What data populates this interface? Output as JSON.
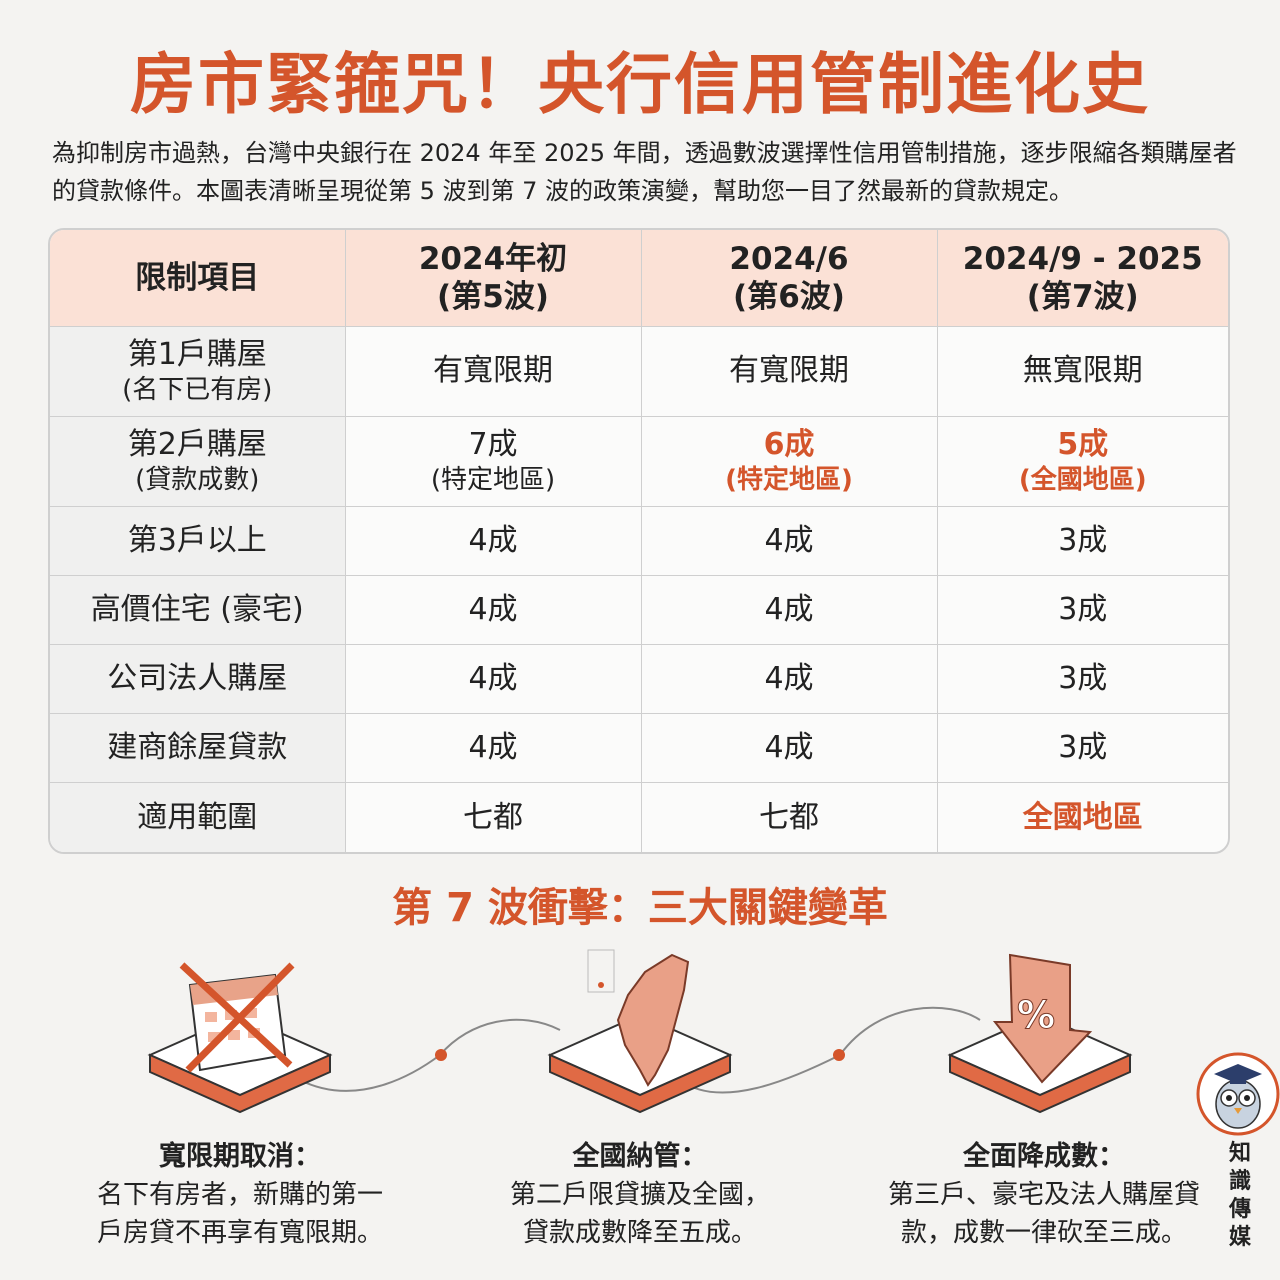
{
  "title": "房市緊箍咒！央行信用管制進化史",
  "intro": "為抑制房市過熱，台灣中央銀行在 2024 年至 2025 年間，透過數波選擇性信用管制措施，逐步限縮各類購屋者的貸款條件。本圖表清晰呈現從第 5 波到第 7 波的政策演變，幫助您一目了然最新的貸款規定。",
  "table": {
    "header": {
      "item": "限制項目",
      "c1_line1": "2024年初",
      "c1_line2": "(第5波)",
      "c2_line1": "2024/6",
      "c2_line2": "(第6波)",
      "c3_line1": "2024/9 - 2025",
      "c3_line2": "(第7波)"
    },
    "row1": {
      "label": "第1戶購屋",
      "sub": "(名下已有房)",
      "c1": "有寬限期",
      "c2": "有寬限期",
      "c3": "無寬限期"
    },
    "row2": {
      "label": "第2戶購屋",
      "sub": "(貸款成數)",
      "c1": "7成",
      "c1_sub": "(特定地區)",
      "c2": "6成",
      "c2_sub": "(特定地區)",
      "c3": "5成",
      "c3_sub": "(全國地區)"
    },
    "row3": {
      "label": "第3戶以上",
      "c1": "4成",
      "c2": "4成",
      "c3": "3成"
    },
    "row4": {
      "label": "高價住宅 (豪宅)",
      "c1": "4成",
      "c2": "4成",
      "c3": "3成"
    },
    "row5": {
      "label": "公司法人購屋",
      "c1": "4成",
      "c2": "4成",
      "c3": "3成"
    },
    "row6": {
      "label": "建商餘屋貸款",
      "c1": "4成",
      "c2": "4成",
      "c3": "3成"
    },
    "row7": {
      "label": "適用範圍",
      "c1": "七都",
      "c2": "七都",
      "c3": "全國地區"
    }
  },
  "section_title": "第 7 波衝擊：三大關鍵變革",
  "changes": [
    {
      "heading": "寬限期取消：",
      "line1": "名下有房者，新購的第一",
      "line2": "戶房貸不再享有寬限期。",
      "icon": "crossed-calendar-icon"
    },
    {
      "heading": "全國納管：",
      "line1": "第二戶限貸擴及全國，",
      "line2": "貸款成數降至五成。",
      "icon": "taiwan-map-icon"
    },
    {
      "heading": "全面降成數：",
      "line1": "第三戶、豪宅及法人購屋貸",
      "line2": "款，成數一律砍至三成。",
      "icon": "percent-down-arrow-icon"
    }
  ],
  "brand": {
    "text": "知識傳媒",
    "logo": "owl-graduate-logo-icon"
  },
  "colors": {
    "accent": "#d4552b",
    "header_bg": "#fbe1d6",
    "page_bg": "#f4f3f1"
  }
}
